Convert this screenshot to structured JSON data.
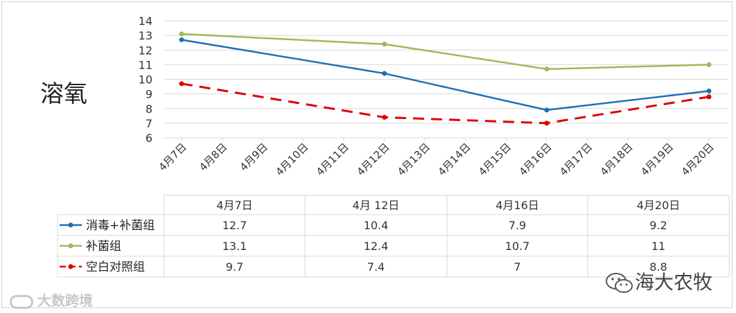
{
  "page_title": "溶氧",
  "watermark_left": "大数跨境",
  "watermark_right": "海大农牧",
  "colors": {
    "blue": "#1f6fb5",
    "green": "#9bbb59",
    "red": "#e00000",
    "grid": "#d9d9d9"
  },
  "chart_data": {
    "type": "line",
    "title": "",
    "xlabel": "",
    "ylabel": "",
    "ylim": [
      6,
      14
    ],
    "yticks": [
      6,
      7,
      8,
      9,
      10,
      11,
      12,
      13,
      14
    ],
    "grid": true,
    "categories": [
      "4月7日",
      "4月8日",
      "4月9日",
      "4月10日",
      "4月11日",
      "4月12日",
      "4月13日",
      "4月14日",
      "4月15日",
      "4月16日",
      "4月17日",
      "4月18日",
      "4月19日",
      "4月20日"
    ],
    "series": [
      {
        "name": "消毒+补菌组",
        "color": "#1f6fb5",
        "dashed": false,
        "points": [
          {
            "x": "4月7日",
            "y": 12.7
          },
          {
            "x": "4月12日",
            "y": 10.4
          },
          {
            "x": "4月16日",
            "y": 7.9
          },
          {
            "x": "4月20日",
            "y": 9.2
          }
        ]
      },
      {
        "name": "补菌组",
        "color": "#9bbb59",
        "dashed": false,
        "points": [
          {
            "x": "4月7日",
            "y": 13.1
          },
          {
            "x": "4月12日",
            "y": 12.4
          },
          {
            "x": "4月16日",
            "y": 10.7
          },
          {
            "x": "4月20日",
            "y": 11
          }
        ]
      },
      {
        "name": "空白对照组",
        "color": "#e00000",
        "dashed": true,
        "points": [
          {
            "x": "4月7日",
            "y": 9.7
          },
          {
            "x": "4月12日",
            "y": 7.4
          },
          {
            "x": "4月16日",
            "y": 7
          },
          {
            "x": "4月20日",
            "y": 8.8
          }
        ]
      }
    ],
    "table": {
      "headers": [
        "4月7日",
        "4月 12日",
        "4月16日",
        "4月20日"
      ],
      "rows": [
        {
          "label": "消毒+补菌组",
          "values": [
            "12.7",
            "10.4",
            "7.9",
            "9.2"
          ]
        },
        {
          "label": "补菌组",
          "values": [
            "13.1",
            "12.4",
            "10.7",
            "11"
          ]
        },
        {
          "label": "空白对照组",
          "values": [
            "9.7",
            "7.4",
            "7",
            "8.8"
          ]
        }
      ]
    }
  }
}
